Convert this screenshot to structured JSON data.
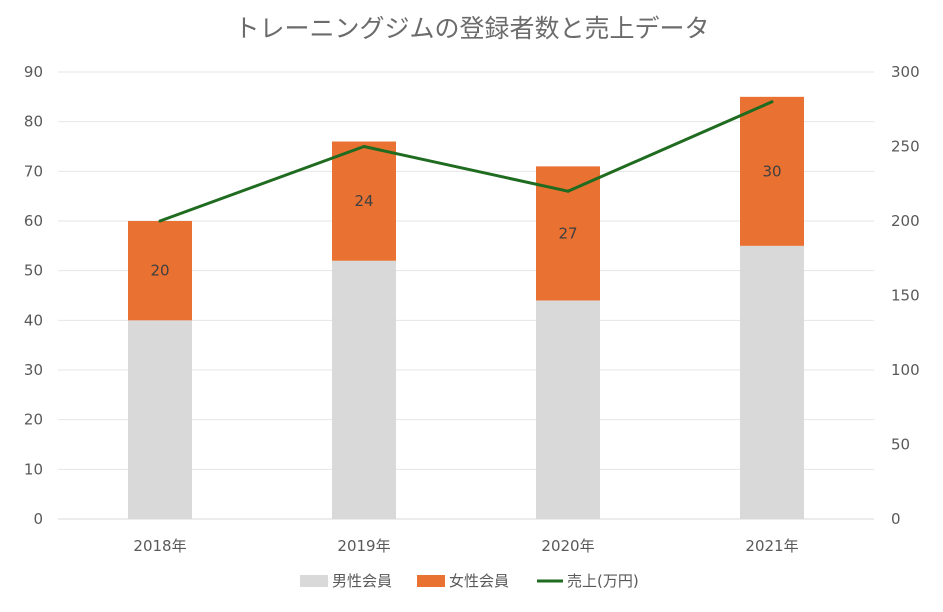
{
  "chart_data": {
    "type": "bar",
    "stacked": true,
    "title": "トレーニングジムの登録者数と売上データ",
    "categories": [
      "2018年",
      "2019年",
      "2020年",
      "2021年"
    ],
    "series": [
      {
        "name": "男性会員",
        "axis": "left",
        "values": [
          40,
          52,
          44,
          55
        ],
        "color": "#d9d9d9"
      },
      {
        "name": "女性会員",
        "axis": "left",
        "values": [
          20,
          24,
          27,
          30
        ],
        "color": "#e97132",
        "data_labels": [
          "20",
          "24",
          "27",
          "30"
        ]
      },
      {
        "name": "売上(万円)",
        "type": "line",
        "axis": "right",
        "values": [
          200,
          250,
          220,
          280
        ],
        "color": "#1f6b1f"
      }
    ],
    "y_left": {
      "lim": [
        0,
        90
      ],
      "ticks": [
        "0",
        "10",
        "20",
        "30",
        "40",
        "50",
        "60",
        "70",
        "80",
        "90"
      ]
    },
    "y_right": {
      "lim": [
        0,
        300
      ],
      "ticks": [
        "0",
        "50",
        "100",
        "150",
        "200",
        "250",
        "300"
      ]
    },
    "grid": true,
    "legend": "bottom"
  }
}
